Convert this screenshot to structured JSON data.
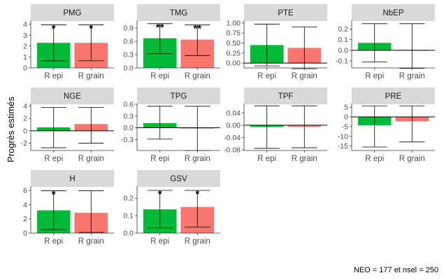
{
  "chart_data": {
    "type": "bar",
    "ylabel": "Progrès estimés",
    "caption": "NEO =  177 et nsel = 250",
    "categories": [
      "R epi",
      "R grain"
    ],
    "colors": [
      "#00ba38",
      "#f8766d"
    ],
    "grid": false,
    "panels": [
      {
        "title": "PMG",
        "values": [
          2.3,
          2.3
        ],
        "errors": [
          [
            0.65,
            3.95
          ],
          [
            0.65,
            3.95
          ]
        ],
        "stars": [
          "*",
          "*"
        ],
        "ylim": [
          0,
          4.3
        ],
        "ticks": [
          0,
          1,
          2,
          3,
          4
        ],
        "tick_labels": [
          "0",
          "1",
          "2",
          "3",
          "4"
        ]
      },
      {
        "title": "TMG",
        "values": [
          0.67,
          0.64
        ],
        "errors": [
          [
            0.32,
            1.0
          ],
          [
            0.28,
            0.97
          ]
        ],
        "stars": [
          "**",
          "**"
        ],
        "ylim": [
          0,
          1.06
        ],
        "ticks": [
          0,
          0.3,
          0.6,
          0.9
        ],
        "tick_labels": [
          "0.0",
          "0.3",
          "0.6",
          "0.9"
        ]
      },
      {
        "title": "PTE",
        "values": [
          0.45,
          0.38
        ],
        "errors": [
          [
            -0.07,
            0.97
          ],
          [
            -0.14,
            0.9
          ]
        ],
        "stars": [
          "",
          ""
        ],
        "ylim": [
          -0.12,
          1.05
        ],
        "ticks": [
          0,
          0.25,
          0.5,
          0.75,
          1.0
        ],
        "tick_labels": [
          "0.00",
          "0.25",
          "0.50",
          "0.75",
          "1.00"
        ]
      },
      {
        "title": "NbEP",
        "values": [
          0.07,
          0.005
        ],
        "errors": [
          [
            -0.11,
            0.25
          ],
          [
            -0.17,
            0.25
          ]
        ],
        "stars": [
          "",
          ""
        ],
        "ylim": [
          -0.165,
          0.275
        ],
        "ticks": [
          -0.1,
          0,
          0.1,
          0.2
        ],
        "tick_labels": [
          "-0.1",
          "0.0",
          "0.1",
          "0.2"
        ]
      },
      {
        "title": "NGE",
        "values": [
          0.55,
          1.1
        ],
        "errors": [
          [
            -2.75,
            3.8
          ],
          [
            -2.0,
            3.8
          ]
        ],
        "stars": [
          "",
          ""
        ],
        "ylim": [
          -3.2,
          4.3
        ],
        "ticks": [
          -2,
          0,
          2,
          4
        ],
        "tick_labels": [
          "-2",
          "0",
          "2",
          "4"
        ]
      },
      {
        "title": "TPG",
        "values": [
          0.12,
          -0.02
        ],
        "errors": [
          [
            -0.29,
            0.55
          ],
          [
            -0.58,
            0.55
          ]
        ],
        "stars": [
          "",
          ""
        ],
        "ylim": [
          -0.58,
          0.6
        ],
        "ticks": [
          -0.3,
          0,
          0.3,
          0.6
        ],
        "tick_labels": [
          "-0.3",
          "0.0",
          "0.3",
          "0.6"
        ]
      },
      {
        "title": "TPF",
        "values": [
          -0.006,
          -0.005
        ],
        "errors": [
          [
            -0.075,
            0.063
          ],
          [
            -0.073,
            0.063
          ]
        ],
        "stars": [
          "",
          ""
        ],
        "ylim": [
          -0.082,
          0.068
        ],
        "ticks": [
          -0.08,
          -0.04,
          0,
          0.04
        ],
        "tick_labels": [
          "-0.08",
          "-0.04",
          "0.00",
          "0.04"
        ]
      },
      {
        "title": "PRE",
        "values": [
          -4.3,
          -2.2
        ],
        "errors": [
          [
            -15.5,
            5.7
          ],
          [
            -12.9,
            5.7
          ]
        ],
        "stars": [
          "",
          ""
        ],
        "ylim": [
          -17.3,
          6.5
        ],
        "ticks": [
          -15,
          -10,
          -5,
          0,
          5
        ],
        "tick_labels": [
          "-15",
          "-10",
          "-5",
          "0",
          "5"
        ]
      },
      {
        "title": "H",
        "values": [
          3.2,
          2.85
        ],
        "errors": [
          [
            0.5,
            5.95
          ],
          [
            0.1,
            5.95
          ]
        ],
        "stars": [
          "*",
          ""
        ],
        "ylim": [
          0,
          6.5
        ],
        "ticks": [
          0,
          2,
          4,
          6
        ],
        "tick_labels": [
          "0",
          "2",
          "4",
          "6"
        ]
      },
      {
        "title": "GSV",
        "values": [
          0.136,
          0.15
        ],
        "errors": [
          [
            0.03,
            0.245
          ],
          [
            0.035,
            0.245
          ]
        ],
        "stars": [
          "*",
          "*"
        ],
        "ylim": [
          0,
          0.265
        ],
        "ticks": [
          0,
          0.1,
          0.2
        ],
        "tick_labels": [
          "0.0",
          "0.1",
          "0.2"
        ]
      }
    ]
  }
}
